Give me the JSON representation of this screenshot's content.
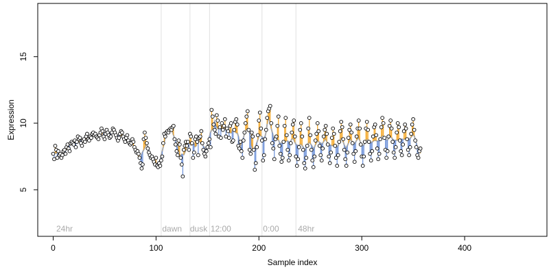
{
  "chart_data": {
    "type": "scatter",
    "title": "",
    "xlabel": "Sample index",
    "ylabel": "Expression",
    "xlim": [
      -15,
      480
    ],
    "ylim": [
      1.5,
      19
    ],
    "x_ticks": [
      0,
      100,
      200,
      300,
      400
    ],
    "y_ticks": [
      5,
      10,
      15
    ],
    "grid": false,
    "vlines": [
      105,
      133,
      152,
      203,
      236
    ],
    "annotations": [
      {
        "text": "24hr",
        "x": 3
      },
      {
        "text": "dawn",
        "x": 106
      },
      {
        "text": "dusk",
        "x": 133
      },
      {
        "text": "12:00",
        "x": 153
      },
      {
        "text": "0:00",
        "x": 204
      },
      {
        "text": "48hr",
        "x": 238
      }
    ],
    "colors": {
      "points_stroke": "#000000",
      "points_fill": "#ffffff",
      "trend_line": "#aaaaaa",
      "above_segment": "#f5a623",
      "below_segment": "#6a8fd8",
      "vline": "#e0e0e0"
    },
    "series": [
      {
        "values": [
          7.7,
          7.3,
          8.3,
          8.0,
          7.4,
          7.9,
          7.6,
          7.7,
          7.4,
          7.6,
          7.9,
          8.0,
          7.7,
          8.2,
          8.4,
          8.1,
          7.9,
          8.5,
          8.6,
          8.5,
          8.4,
          8.7,
          8.2,
          8.6,
          9.0,
          8.8,
          8.9,
          8.5,
          8.3,
          8.7,
          8.8,
          8.6,
          9.0,
          9.2,
          8.8,
          8.7,
          9.0,
          8.9,
          9.2,
          9.3,
          9.1,
          9.2,
          9.0,
          8.9,
          8.8,
          9.1,
          9.3,
          9.6,
          9.4,
          9.0,
          8.8,
          9.2,
          9.5,
          9.3,
          9.1,
          8.9,
          9.0,
          9.3,
          9.6,
          9.5,
          9.3,
          9.1,
          8.9,
          8.7,
          8.9,
          9.2,
          9.4,
          9.3,
          9.0,
          8.8,
          8.6,
          8.9,
          9.1,
          8.7,
          8.5,
          8.4,
          8.5,
          8.8,
          8.6,
          8.2,
          8.0,
          7.8,
          7.9,
          7.7,
          7.4,
          7.0,
          6.6,
          6.9,
          8.8,
          9.3,
          8.9,
          8.5,
          8.1,
          7.8,
          7.6,
          7.4,
          7.5,
          7.3,
          7.1,
          6.9,
          7.4,
          6.8,
          6.7,
          7.0,
          6.8,
          7.2,
          7.5,
          8.5,
          9.2,
          9.0,
          9.3,
          9.4,
          9.3,
          9.5,
          9.6,
          9.5,
          9.7,
          9.8,
          8.8,
          8.4,
          7.9,
          7.6,
          8.7,
          8.4,
          7.4,
          6.9,
          6.0,
          8.0,
          8.3,
          8.6,
          8.3,
          8.6,
          8.0,
          9.2,
          9.0,
          8.5,
          7.4,
          7.8,
          8.8,
          9.0,
          8.6,
          7.6,
          8.9,
          9.0,
          9.4,
          8.5,
          8.0,
          7.7,
          7.5,
          7.9,
          8.2,
          8.5,
          8.8,
          8.2,
          11.0,
          10.5,
          9.9,
          9.5,
          9.2,
          10.6,
          10.2,
          9.0,
          9.7,
          8.9,
          10.0,
          9.5,
          9.8,
          10.3,
          9.0,
          9.6,
          9.4,
          8.9,
          9.8,
          10.0,
          8.6,
          8.7,
          9.5,
          10.1,
          10.3,
          9.9,
          8.3,
          8.1,
          8.6,
          7.9,
          7.4,
          8.7,
          9.3,
          10.0,
          10.5,
          10.9,
          9.5,
          8.0,
          7.7,
          9.3,
          9.0,
          8.0,
          6.5,
          7.0,
          8.2,
          9.1,
          10.2,
          10.8,
          9.6,
          8.7,
          7.2,
          7.6,
          8.8,
          9.5,
          10.4,
          10.9,
          11.1,
          11.3,
          10.0,
          8.5,
          8.1,
          7.3,
          8.8,
          9.0,
          9.8,
          10.5,
          8.3,
          7.7,
          7.1,
          7.4,
          8.6,
          9.8,
          10.4,
          9.1,
          8.0,
          7.2,
          7.6,
          8.5,
          9.3,
          9.9,
          10.2,
          9.0,
          7.5,
          6.8,
          7.3,
          8.2,
          9.5,
          10.0,
          9.0,
          8.0,
          7.0,
          6.6,
          7.4,
          8.3,
          9.6,
          10.4,
          9.1,
          8.0,
          7.2,
          6.7,
          7.5,
          8.7,
          9.2,
          10.0,
          9.4,
          8.3,
          7.6,
          7.2,
          8.1,
          9.0,
          9.5,
          9.8,
          9.2,
          8.4,
          7.5,
          7.0,
          7.8,
          8.9,
          9.6,
          9.2,
          8.3,
          7.4,
          6.8,
          7.6,
          8.6,
          9.4,
          10.1,
          9.7,
          8.8,
          8.0,
          7.3,
          6.8,
          7.8,
          8.9,
          9.5,
          9.9,
          9.3,
          8.5,
          7.7,
          7.1,
          7.9,
          9.0,
          9.6,
          10.2,
          9.6,
          8.4,
          7.5,
          6.8,
          7.5,
          8.6,
          9.6,
          10.1,
          9.5,
          8.6,
          7.7,
          7.2,
          7.9,
          9.0,
          9.7,
          9.9,
          9.1,
          8.1,
          7.3,
          7.7,
          8.8,
          9.7,
          10.4,
          10.0,
          8.9,
          8.0,
          7.4,
          7.9,
          9.0,
          9.8,
          10.2,
          9.6,
          8.6,
          7.8,
          7.4,
          8.2,
          9.3,
          10.0,
          9.7,
          8.7,
          7.9,
          7.6,
          8.4,
          9.4,
          9.9,
          9.6,
          8.8,
          8.0,
          7.6,
          8.2,
          9.2,
          9.9,
          10.3,
          9.5,
          8.7,
          8.2,
          7.6,
          7.4,
          7.9,
          8.1
        ]
      }
    ]
  }
}
